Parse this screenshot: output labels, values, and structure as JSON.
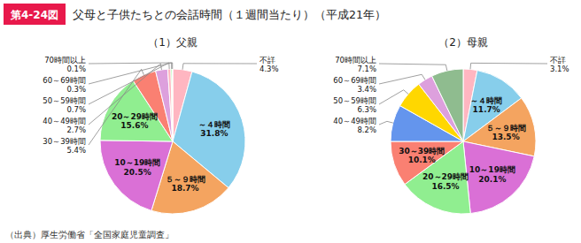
{
  "title": "第4-24図",
  "subtitle": "父母と子供たちとの会話時間（１週間当たり）（平成21年）",
  "color": "#E8194B",
  "source": "（出典）厚生労働省「全国家庭児童調査」",
  "chart_data": [
    {
      "type": "pie",
      "title": "（1）父親",
      "categories": [
        "不詳",
        "～４時間",
        "５～９時間",
        "10～19時間",
        "20～29時間",
        "30～39時間",
        "40～49時間",
        "50～59時間",
        "60～69時間",
        "70時間以上"
      ],
      "values": [
        4.3,
        31.8,
        18.7,
        20.5,
        15.6,
        5.4,
        2.7,
        0.7,
        0.3,
        0.1
      ],
      "value_labels": [
        "4.3%",
        "31.8%",
        "18.7%",
        "20.5%",
        "15.6%",
        "5.4%",
        "2.7%",
        "0.7%",
        "0.3%",
        "0.1%"
      ],
      "colors": [
        "#FFB6C1",
        "#87CEEB",
        "#F4A460",
        "#DA70D6",
        "#90EE90",
        "#FA8072",
        "#DDA0DD",
        "#FFB6C1",
        "#98FB98",
        "#FFD700"
      ],
      "data_labels": true
    },
    {
      "type": "pie",
      "title": "（2）母親",
      "categories": [
        "不詳",
        "～４時間",
        "５～９時間",
        "10～19時間",
        "20～29時間",
        "30～39時間",
        "40～49時間",
        "50～59時間",
        "60～69時間",
        "70時間以上"
      ],
      "values": [
        3.1,
        11.7,
        13.5,
        20.1,
        16.5,
        10.1,
        8.2,
        6.3,
        3.4,
        7.1
      ],
      "value_labels": [
        "3.1%",
        "11.7%",
        "13.5%",
        "20.1%",
        "16.5%",
        "10.1%",
        "8.2%",
        "6.3%",
        "3.4%",
        "7.1%"
      ],
      "colors": [
        "#FFB6C1",
        "#87CEEB",
        "#F4A460",
        "#DA70D6",
        "#90EE90",
        "#FA8072",
        "#6495ED",
        "#FFD700",
        "#DDA0DD",
        "#8FBC8F"
      ],
      "data_labels": true
    }
  ]
}
